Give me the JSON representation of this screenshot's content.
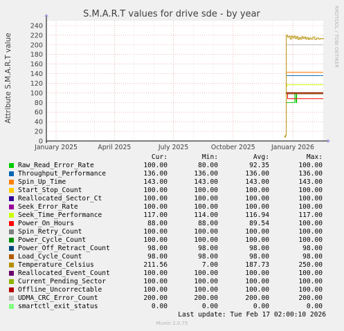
{
  "chart_data": {
    "type": "line",
    "title": "S.M.A.R.T values for drive sde - by year",
    "ylabel": "Attribute S.M.A.R.T value",
    "xlabel": "",
    "ylim": [
      0,
      250
    ],
    "yticks": [
      0,
      20,
      40,
      60,
      80,
      100,
      120,
      140,
      160,
      180,
      200,
      220,
      240
    ],
    "xticks": [
      {
        "date": "2025-01-01",
        "label": "January 2025"
      },
      {
        "date": "2025-04-01",
        "label": "April 2025"
      },
      {
        "date": "2025-07-01",
        "label": "July 2025"
      },
      {
        "date": "2025-10-01",
        "label": "October 2025"
      },
      {
        "date": "2026-01-01",
        "label": "January 2026"
      }
    ],
    "xrange": [
      "2024-12-17",
      "2026-02-17"
    ],
    "grid": true,
    "series": [
      {
        "name": "Raw_Read_Error_Rate",
        "color": "#00cc00",
        "cur": "100.00",
        "min": "80.00",
        "avg": "92.35",
        "max": "100.00",
        "points": [
          [
            "2025-12-22",
            80
          ],
          [
            "2026-01-03",
            80
          ],
          [
            "2026-01-04",
            100
          ],
          [
            "2026-01-06",
            80
          ],
          [
            "2026-01-07",
            100
          ],
          [
            "2026-02-17",
            100
          ]
        ]
      },
      {
        "name": "Throughput_Performance",
        "color": "#0066b3",
        "cur": "136.00",
        "min": "136.00",
        "avg": "136.00",
        "max": "136.00",
        "points": [
          [
            "2025-12-22",
            136
          ],
          [
            "2026-02-17",
            136
          ]
        ]
      },
      {
        "name": "Spin_Up_Time",
        "color": "#ff8000",
        "cur": "143.00",
        "min": "143.00",
        "avg": "143.00",
        "max": "143.00",
        "points": [
          [
            "2025-12-22",
            143
          ],
          [
            "2026-02-17",
            143
          ]
        ]
      },
      {
        "name": "Start_Stop_Count",
        "color": "#ffcc00",
        "cur": "100.00",
        "min": "100.00",
        "avg": "100.00",
        "max": "100.00",
        "points": [
          [
            "2025-12-22",
            100
          ],
          [
            "2026-02-17",
            100
          ]
        ]
      },
      {
        "name": "Reallocated_Sector_Ct",
        "color": "#330099",
        "cur": "100.00",
        "min": "100.00",
        "avg": "100.00",
        "max": "100.00",
        "points": [
          [
            "2025-12-22",
            100
          ],
          [
            "2026-02-17",
            100
          ]
        ]
      },
      {
        "name": "Seek_Error_Rate",
        "color": "#990099",
        "cur": "100.00",
        "min": "100.00",
        "avg": "100.00",
        "max": "100.00",
        "points": [
          [
            "2025-12-22",
            100
          ],
          [
            "2026-02-17",
            100
          ]
        ]
      },
      {
        "name": "Seek_Time_Performance",
        "color": "#ccff00",
        "cur": "117.00",
        "min": "114.00",
        "avg": "116.94",
        "max": "117.00",
        "points": [
          [
            "2025-12-22",
            114
          ],
          [
            "2025-12-23",
            117
          ],
          [
            "2026-02-17",
            117
          ]
        ]
      },
      {
        "name": "Power_On_Hours",
        "color": "#ff0000",
        "cur": "88.00",
        "min": "88.00",
        "avg": "89.54",
        "max": "100.00",
        "points": [
          [
            "2025-12-22",
            100
          ],
          [
            "2025-12-24",
            88
          ],
          [
            "2026-02-17",
            88
          ]
        ]
      },
      {
        "name": "Spin_Retry_Count",
        "color": "#808080",
        "cur": "100.00",
        "min": "100.00",
        "avg": "100.00",
        "max": "100.00",
        "points": [
          [
            "2025-12-22",
            100
          ],
          [
            "2026-02-17",
            100
          ]
        ]
      },
      {
        "name": "Power_Cycle_Count",
        "color": "#008f00",
        "cur": "100.00",
        "min": "100.00",
        "avg": "100.00",
        "max": "100.00",
        "points": [
          [
            "2025-12-22",
            100
          ],
          [
            "2026-02-17",
            100
          ]
        ]
      },
      {
        "name": "Power_Off_Retract_Count",
        "color": "#00487d",
        "cur": "98.00",
        "min": "98.00",
        "avg": "98.00",
        "max": "98.00",
        "points": [
          [
            "2025-12-22",
            98
          ],
          [
            "2026-02-17",
            98
          ]
        ]
      },
      {
        "name": "Load_Cycle_Count",
        "color": "#b35a00",
        "cur": "98.00",
        "min": "98.00",
        "avg": "98.00",
        "max": "98.00",
        "points": [
          [
            "2025-12-22",
            98
          ],
          [
            "2026-02-17",
            98
          ]
        ]
      },
      {
        "name": "Temperature_Celsius",
        "color": "#b38f00",
        "cur": "211.56",
        "min": "7.00",
        "avg": "187.73",
        "max": "250.00",
        "points": [
          [
            "2025-12-19",
            10
          ],
          [
            "2025-12-20",
            8
          ],
          [
            "2025-12-21",
            12
          ],
          [
            "2025-12-22",
            220
          ],
          [
            "2025-12-24",
            216
          ],
          [
            "2025-12-26",
            218
          ],
          [
            "2025-12-28",
            212
          ],
          [
            "2025-12-30",
            218
          ],
          [
            "2026-01-01",
            214
          ],
          [
            "2026-01-03",
            218
          ],
          [
            "2026-01-05",
            213
          ],
          [
            "2026-01-07",
            217
          ],
          [
            "2026-01-09",
            211
          ],
          [
            "2026-01-11",
            215
          ],
          [
            "2026-01-13",
            212
          ],
          [
            "2026-01-15",
            217
          ],
          [
            "2026-01-17",
            213
          ],
          [
            "2026-01-19",
            216
          ],
          [
            "2026-01-21",
            212
          ],
          [
            "2026-01-23",
            215
          ],
          [
            "2026-01-25",
            211
          ],
          [
            "2026-01-27",
            214
          ],
          [
            "2026-01-29",
            212
          ],
          [
            "2026-02-01",
            216
          ],
          [
            "2026-02-04",
            211
          ],
          [
            "2026-02-07",
            214
          ],
          [
            "2026-02-10",
            212
          ],
          [
            "2026-02-13",
            213
          ],
          [
            "2026-02-17",
            211
          ]
        ]
      },
      {
        "name": "Reallocated_Event_Count",
        "color": "#6b006b",
        "cur": "100.00",
        "min": "100.00",
        "avg": "100.00",
        "max": "100.00",
        "points": [
          [
            "2025-12-22",
            100
          ],
          [
            "2026-02-17",
            100
          ]
        ]
      },
      {
        "name": "Current_Pending_Sector",
        "color": "#8fb300",
        "cur": "100.00",
        "min": "100.00",
        "avg": "100.00",
        "max": "100.00",
        "points": [
          [
            "2025-12-22",
            100
          ],
          [
            "2026-02-17",
            100
          ]
        ]
      },
      {
        "name": "Offline_Uncorrectable",
        "color": "#b30000",
        "cur": "100.00",
        "min": "100.00",
        "avg": "100.00",
        "max": "100.00",
        "points": [
          [
            "2025-12-22",
            100
          ],
          [
            "2026-02-17",
            100
          ]
        ]
      },
      {
        "name": "UDMA_CRC_Error_Count",
        "color": "#bebebe",
        "cur": "200.00",
        "min": "200.00",
        "avg": "200.00",
        "max": "200.00",
        "points": [
          [
            "2025-12-22",
            200
          ],
          [
            "2026-02-17",
            200
          ]
        ]
      },
      {
        "name": "smartctl_exit_status",
        "color": "#80ff80",
        "cur": "0.00",
        "min": "0.00",
        "avg": "0.00",
        "max": "0.00",
        "points": [
          [
            "2024-12-17",
            0
          ],
          [
            "2026-02-17",
            0
          ]
        ]
      }
    ]
  },
  "legend_headers": {
    "cur": "Cur:",
    "min": "Min:",
    "avg": "Avg:",
    "max": "Max:"
  },
  "footer": {
    "last_update": "Last update: Tue Feb 17 02:00:10 2026",
    "munin_version": "Munin 2.0.75"
  },
  "side_credit": "RRDTOOL / TOBI OETIKER",
  "colors": {
    "background": "#f0f0f0",
    "plot_background": "#ffffff",
    "grid": "#e5a0a0",
    "axis": "#000000"
  }
}
